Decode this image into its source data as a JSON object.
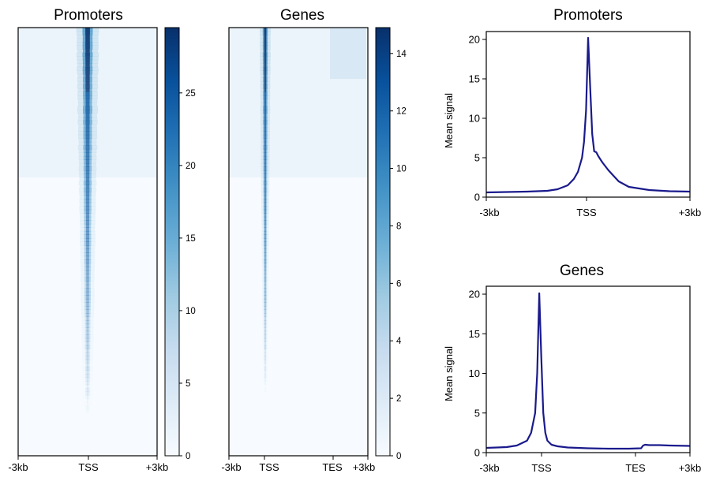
{
  "colors": {
    "heatmap_high": "#08306b",
    "heatmap_mid": "#2171b5",
    "heatmap_low": "#f7fbff",
    "profile_line": "#1a1a8c"
  },
  "chart_data": [
    {
      "id": "heatmap_promoters",
      "type": "heatmap",
      "title": "Promoters",
      "x_tick_labels": [
        "-3kb",
        "TSS",
        "+3kb"
      ],
      "colorbar": {
        "min": 0,
        "max": 29.5,
        "ticks": [
          0,
          5,
          10,
          15,
          20,
          25
        ]
      },
      "description_values": {
        "peak_position": "TSS",
        "signal_fades_by_row_fraction": 0.9
      }
    },
    {
      "id": "heatmap_genes",
      "type": "heatmap",
      "title": "Genes",
      "x_tick_labels": [
        "-3kb",
        "TSS",
        "TES",
        "+3kb"
      ],
      "colorbar": {
        "min": 0,
        "max": 14.9,
        "ticks": [
          0,
          2,
          4,
          6,
          8,
          10,
          12,
          14
        ]
      },
      "description_values": {
        "peak_position": "TSS",
        "signal_fades_by_row_fraction": 0.85
      }
    },
    {
      "id": "profile_promoters",
      "type": "line",
      "title": "Promoters",
      "ylabel": "Mean signal",
      "x_tick_labels": [
        "-3kb",
        "TSS",
        "+3kb"
      ],
      "y_ticks": [
        0,
        5,
        10,
        15,
        20
      ],
      "ylim": [
        0,
        21
      ],
      "xlim": [
        0,
        1
      ],
      "series": [
        {
          "x": [
            0,
            0.1,
            0.2,
            0.3,
            0.35,
            0.4,
            0.43,
            0.45,
            0.47,
            0.48,
            0.49,
            0.5,
            0.51,
            0.52,
            0.53,
            0.54,
            0.55,
            0.57,
            0.6,
            0.65,
            0.7,
            0.8,
            0.9,
            1.0
          ],
          "y": [
            0.6,
            0.65,
            0.7,
            0.8,
            1.0,
            1.5,
            2.3,
            3.2,
            5.0,
            7.0,
            11.0,
            20.2,
            14.0,
            8.0,
            5.8,
            5.7,
            5.2,
            4.4,
            3.4,
            2.0,
            1.3,
            0.9,
            0.75,
            0.7
          ]
        }
      ]
    },
    {
      "id": "profile_genes",
      "type": "line",
      "title": "Genes",
      "ylabel": "Mean signal",
      "x_tick_labels": [
        "-3kb",
        "TSS",
        "TES",
        "+3kb"
      ],
      "y_ticks": [
        0,
        5,
        10,
        15,
        20
      ],
      "ylim": [
        0,
        21
      ],
      "xlim": [
        0,
        1
      ],
      "series": [
        {
          "x": [
            0,
            0.1,
            0.15,
            0.2,
            0.22,
            0.24,
            0.25,
            0.26,
            0.27,
            0.28,
            0.29,
            0.3,
            0.32,
            0.35,
            0.4,
            0.5,
            0.6,
            0.7,
            0.76,
            0.77,
            0.78,
            0.8,
            0.85,
            0.9,
            1.0
          ],
          "y": [
            0.6,
            0.7,
            0.9,
            1.5,
            2.5,
            5.0,
            10.0,
            20.1,
            12.0,
            5.0,
            2.5,
            1.5,
            1.0,
            0.8,
            0.65,
            0.55,
            0.5,
            0.5,
            0.55,
            0.9,
            1.0,
            0.95,
            0.95,
            0.9,
            0.85
          ]
        }
      ]
    }
  ]
}
